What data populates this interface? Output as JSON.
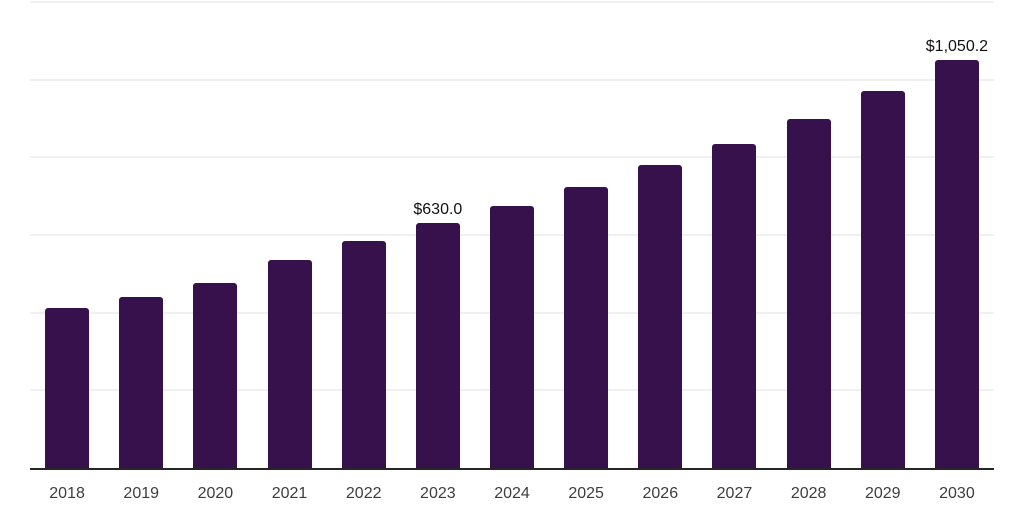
{
  "chart_data": {
    "type": "bar",
    "categories": [
      "2018",
      "2019",
      "2020",
      "2021",
      "2022",
      "2023",
      "2024",
      "2025",
      "2026",
      "2027",
      "2028",
      "2029",
      "2030"
    ],
    "values": [
      413,
      441,
      477,
      536,
      585,
      630.0,
      675,
      723,
      779,
      835,
      899,
      972,
      1050.2
    ],
    "data_labels": [
      {
        "category": "2023",
        "index": 5,
        "text": "$630.0"
      },
      {
        "category": "2030",
        "index": 12,
        "text": "$1,050.2"
      }
    ],
    "xlabel": "",
    "ylabel": "",
    "ylim": [
      0,
      1200
    ],
    "grid": true,
    "gridline_values": [
      200,
      400,
      600,
      800,
      1000,
      1200
    ],
    "legend": false,
    "colors": {
      "bar": "#36114b",
      "gridline": "#f0f0f0",
      "axis_line": "#262626",
      "tick_label": "#3d3d3d",
      "value_label": "#111111",
      "background": "#ffffff"
    }
  }
}
